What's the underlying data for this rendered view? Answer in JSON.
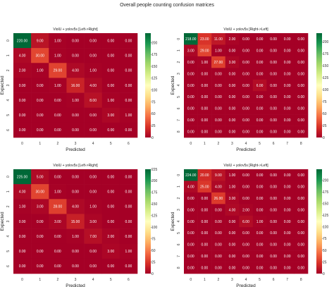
{
  "figure": {
    "title": "Overall people counting confusion matrices"
  },
  "chart_data": [
    {
      "type": "heatmap",
      "title": "ViolU + yolov5s [Left->Right]",
      "xlabel": "Predicted",
      "ylabel": "Expected",
      "x_ticks": [
        "0",
        "1",
        "2",
        "3",
        "4",
        "5",
        "6"
      ],
      "y_ticks": [
        "0",
        "1",
        "2",
        "3",
        "4",
        "5",
        "6"
      ],
      "values": [
        [
          220.0,
          9.0,
          1.0,
          0.0,
          0.0,
          0.0,
          0.0
        ],
        [
          4.0,
          30.0,
          1.0,
          0.0,
          0.0,
          0.0,
          0.0
        ],
        [
          2.0,
          1.0,
          29.0,
          4.0,
          1.0,
          0.0,
          0.0
        ],
        [
          0.0,
          0.0,
          1.0,
          16.0,
          4.0,
          0.0,
          0.0
        ],
        [
          0.0,
          0.0,
          0.0,
          1.0,
          8.0,
          1.0,
          0.0
        ],
        [
          0.0,
          0.0,
          0.0,
          0.0,
          0.0,
          3.0,
          1.0
        ],
        [
          0.0,
          0.0,
          0.0,
          0.0,
          0.0,
          0.0,
          0.0
        ]
      ],
      "colorbar": {
        "min": 0,
        "max": 220,
        "ticks": [
          0,
          25,
          50,
          75,
          100,
          125,
          150,
          175,
          200
        ]
      },
      "colormap": "RdYlGn"
    },
    {
      "type": "heatmap",
      "title": "ViolU + yolov5s [Right->Left]",
      "xlabel": "Predicted",
      "ylabel": "Expected",
      "x_ticks": [
        "0",
        "1",
        "2",
        "3",
        "4",
        "5",
        "6",
        "7",
        "8"
      ],
      "y_ticks": [
        "0",
        "1",
        "2",
        "3",
        "4",
        "5",
        "6",
        "7",
        "8"
      ],
      "values": [
        [
          218.0,
          23.0,
          11.0,
          2.0,
          0.0,
          0.0,
          0.0,
          0.0,
          0.0
        ],
        [
          3.0,
          29.0,
          1.0,
          0.0,
          0.0,
          0.0,
          0.0,
          0.0,
          0.0
        ],
        [
          0.0,
          1.0,
          27.0,
          3.0,
          0.0,
          0.0,
          0.0,
          0.0,
          0.0
        ],
        [
          0.0,
          0.0,
          0.0,
          0.0,
          0.0,
          0.0,
          0.0,
          0.0,
          0.0
        ],
        [
          0.0,
          0.0,
          0.0,
          0.0,
          0.0,
          6.0,
          0.0,
          0.0,
          0.0
        ],
        [
          0.0,
          0.0,
          0.0,
          0.0,
          0.0,
          0.0,
          0.0,
          0.0,
          0.0
        ],
        [
          0.0,
          0.0,
          0.0,
          0.0,
          0.0,
          0.0,
          0.0,
          0.0,
          0.0
        ],
        [
          0.0,
          0.0,
          0.0,
          0.0,
          0.0,
          0.0,
          0.0,
          0.0,
          0.0
        ],
        [
          0.0,
          0.0,
          0.0,
          0.0,
          0.0,
          0.0,
          0.0,
          0.0,
          0.0
        ]
      ],
      "colorbar": {
        "min": 0,
        "max": 218,
        "ticks": [
          0,
          25,
          50,
          75,
          100,
          125,
          150,
          175,
          200
        ]
      },
      "colormap": "RdYlGn"
    },
    {
      "type": "heatmap",
      "title": "ViolU + yolov5s [Left->Right]",
      "xlabel": "Predicted",
      "ylabel": "Expected",
      "x_ticks": [
        "0",
        "1",
        "2",
        "3",
        "4",
        "5",
        "6"
      ],
      "y_ticks": [
        "0",
        "1",
        "2",
        "3",
        "4",
        "5",
        "6"
      ],
      "values": [
        [
          225.0,
          5.0,
          0.0,
          0.0,
          0.0,
          0.0,
          0.0
        ],
        [
          4.0,
          30.0,
          1.0,
          0.0,
          0.0,
          0.0,
          0.0
        ],
        [
          1.0,
          3.0,
          28.0,
          4.0,
          1.0,
          0.0,
          0.0
        ],
        [
          0.0,
          0.0,
          3.0,
          15.0,
          3.0,
          0.0,
          0.0
        ],
        [
          0.0,
          0.0,
          0.0,
          1.0,
          7.0,
          2.0,
          0.0
        ],
        [
          0.0,
          0.0,
          0.0,
          0.0,
          0.0,
          3.0,
          1.0
        ],
        [
          0.0,
          0.0,
          0.0,
          0.0,
          0.0,
          0.0,
          0.0
        ]
      ],
      "colorbar": {
        "min": 0,
        "max": 225,
        "ticks": [
          0,
          25,
          50,
          75,
          100,
          125,
          150,
          175,
          200,
          225
        ]
      },
      "colormap": "RdYlGn"
    },
    {
      "type": "heatmap",
      "title": "ViolU + yolov5s [Right->Left]",
      "xlabel": "Predicted",
      "ylabel": "Expected",
      "x_ticks": [
        "0",
        "1",
        "2",
        "3",
        "4",
        "5",
        "6",
        "7",
        "8"
      ],
      "y_ticks": [
        "0",
        "1",
        "2",
        "3",
        "4",
        "5",
        "6",
        "7",
        "8"
      ],
      "values": [
        [
          224.0,
          20.0,
          9.0,
          1.0,
          0.0,
          0.0,
          0.0,
          0.0,
          0.0
        ],
        [
          4.0,
          25.0,
          4.0,
          1.0,
          0.0,
          0.0,
          0.0,
          0.0,
          0.0
        ],
        [
          0.0,
          0.0,
          26.0,
          3.0,
          0.0,
          0.0,
          0.0,
          0.0,
          0.0
        ],
        [
          0.0,
          0.0,
          0.0,
          4.0,
          2.0,
          0.0,
          0.0,
          0.0,
          0.0
        ],
        [
          0.0,
          0.0,
          0.0,
          0.0,
          6.0,
          1.0,
          0.0,
          0.0,
          0.0
        ],
        [
          0.0,
          0.0,
          0.0,
          0.0,
          0.0,
          0.0,
          0.0,
          0.0,
          0.0
        ],
        [
          0.0,
          0.0,
          0.0,
          0.0,
          0.0,
          0.0,
          0.0,
          0.0,
          0.0
        ],
        [
          0.0,
          0.0,
          0.0,
          0.0,
          0.0,
          0.0,
          0.0,
          0.0,
          0.0
        ],
        [
          0.0,
          0.0,
          0.0,
          0.0,
          0.0,
          0.0,
          0.0,
          0.0,
          0.0
        ]
      ],
      "colorbar": {
        "min": 0,
        "max": 224,
        "ticks": [
          0,
          25,
          50,
          75,
          100,
          125,
          150,
          175,
          200
        ]
      },
      "colormap": "RdYlGn"
    }
  ]
}
